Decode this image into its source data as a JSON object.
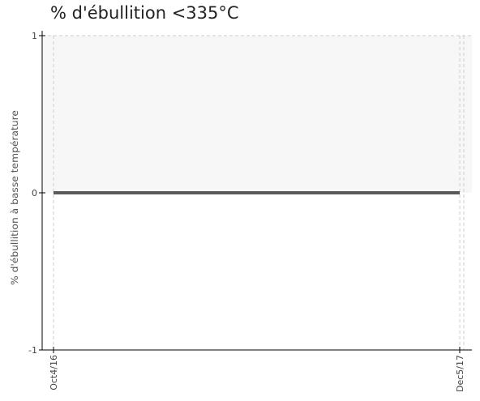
{
  "chart_data": {
    "type": "line",
    "title": "% d'ébullition <335°C",
    "xlabel": "",
    "ylabel": "% d'ébullition à basse température",
    "x_ticks": [
      "Oct4/16",
      "Dec5/17"
    ],
    "y_ticks": [
      "1",
      "0",
      "-1"
    ],
    "ylim": [
      -1,
      1
    ],
    "grid": true,
    "series": [
      {
        "x": [
          "Oct4/16",
          "Dec5/17"
        ],
        "values": [
          0,
          0
        ]
      }
    ],
    "colors": {
      "line": "#5a5a5a",
      "band": "#f7f7f7",
      "grid": "#cccccc",
      "axis": "#000000"
    }
  }
}
